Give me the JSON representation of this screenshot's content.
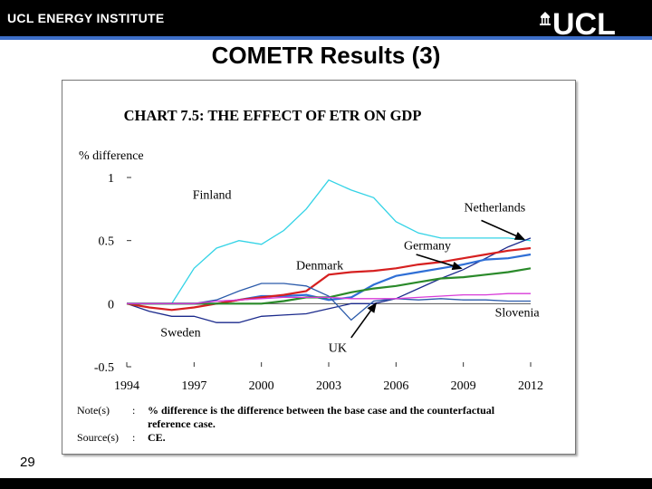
{
  "header": {
    "institute": "UCL ENERGY INSTITUTE",
    "logo_text": "UCL"
  },
  "slide": {
    "title": "COMETR Results (3)",
    "number": "29"
  },
  "chart_data": {
    "type": "line",
    "title": "CHART 7.5: THE EFFECT OF ETR ON GDP",
    "ylabel": "% difference",
    "xlabel": "",
    "ylim": [
      -0.5,
      1
    ],
    "yticks": [
      -0.5,
      0,
      0.5,
      1
    ],
    "ytick_labels": [
      "-0.5",
      "0",
      "0.5",
      "1"
    ],
    "xlim": [
      1994,
      2012
    ],
    "xticks": [
      1994,
      1997,
      2000,
      2003,
      2006,
      2009,
      2012
    ],
    "x": [
      1994,
      1995,
      1996,
      1997,
      1998,
      1999,
      2000,
      2001,
      2002,
      2003,
      2004,
      2005,
      2006,
      2007,
      2008,
      2009,
      2010,
      2011,
      2012
    ],
    "series": [
      {
        "name": "Finland",
        "color": "#33d3e6",
        "values": [
          0,
          0,
          0,
          0.28,
          0.44,
          0.5,
          0.47,
          0.58,
          0.75,
          0.98,
          0.9,
          0.84,
          0.65,
          0.56,
          0.52,
          0.52,
          0.52,
          0.52,
          0.5
        ]
      },
      {
        "name": "Netherlands",
        "color": "#1b2a8c",
        "values": [
          0,
          -0.06,
          -0.1,
          -0.1,
          -0.15,
          -0.15,
          -0.1,
          -0.09,
          -0.08,
          -0.04,
          0,
          0,
          0.04,
          0.12,
          0.2,
          0.27,
          0.36,
          0.45,
          0.52
        ]
      },
      {
        "name": "Germany",
        "color": "#2f6fd6",
        "values": [
          0,
          0,
          0,
          0,
          0,
          0.03,
          0.06,
          0.06,
          0.07,
          0.03,
          0.05,
          0.15,
          0.22,
          0.25,
          0.28,
          0.31,
          0.35,
          0.36,
          0.39
        ]
      },
      {
        "name": "Denmark",
        "color": "#d62020",
        "values": [
          0,
          -0.03,
          -0.05,
          -0.03,
          0,
          0.03,
          0.05,
          0.07,
          0.1,
          0.23,
          0.25,
          0.26,
          0.28,
          0.31,
          0.33,
          0.36,
          0.39,
          0.42,
          0.44
        ]
      },
      {
        "name": "Sweden",
        "color": "#2a8a2a",
        "values": [
          0,
          0,
          0,
          0,
          0,
          0,
          0,
          0.02,
          0.05,
          0.05,
          0.09,
          0.12,
          0.14,
          0.17,
          0.2,
          0.21,
          0.23,
          0.25,
          0.28
        ]
      },
      {
        "name": "UK",
        "color": "#2a5aaa",
        "values": [
          0,
          0,
          0,
          0,
          0.03,
          0.1,
          0.16,
          0.16,
          0.14,
          0.06,
          -0.13,
          0.02,
          0.04,
          0.03,
          0.04,
          0.03,
          0.03,
          0.02,
          0.02
        ]
      },
      {
        "name": "Slovenia",
        "color": "#d83ad8",
        "values": [
          0,
          0,
          0,
          0,
          0.02,
          0.03,
          0.04,
          0.05,
          0.05,
          0.05,
          0.04,
          0.04,
          0.04,
          0.05,
          0.06,
          0.07,
          0.07,
          0.08,
          0.08
        ]
      }
    ],
    "labels": [
      {
        "text": "Finland",
        "x": 1997.8,
        "y": 0.83
      },
      {
        "text": "Netherlands",
        "x": 2010.4,
        "y": 0.73
      },
      {
        "text": "Germany",
        "x": 2007.4,
        "y": 0.43
      },
      {
        "text": "Denmark",
        "x": 2002.6,
        "y": 0.27
      },
      {
        "text": "Slovenia",
        "x": 2011.4,
        "y": -0.1
      },
      {
        "text": "Sweden",
        "x": 1996.4,
        "y": -0.26
      },
      {
        "text": "UK",
        "x": 2003.4,
        "y": -0.38
      }
    ],
    "arrows": [
      {
        "name": "netherlands-arrow",
        "from": [
          2009.8,
          0.66
        ],
        "to": [
          2011.7,
          0.51
        ]
      },
      {
        "name": "germany-arrow",
        "from": [
          2006.9,
          0.39
        ],
        "to": [
          2008.9,
          0.28
        ]
      },
      {
        "name": "uk-arrow",
        "from": [
          2004.0,
          -0.27
        ],
        "to": [
          2005.1,
          0.0
        ]
      }
    ],
    "notes": [
      {
        "label": "Note(s)",
        "sep": ":",
        "text": "% difference is the difference between the base case and the counterfactual"
      },
      {
        "label": "",
        "sep": "",
        "text": "reference case."
      },
      {
        "label": "Source(s)",
        "sep": ":",
        "text": "CE."
      }
    ]
  }
}
